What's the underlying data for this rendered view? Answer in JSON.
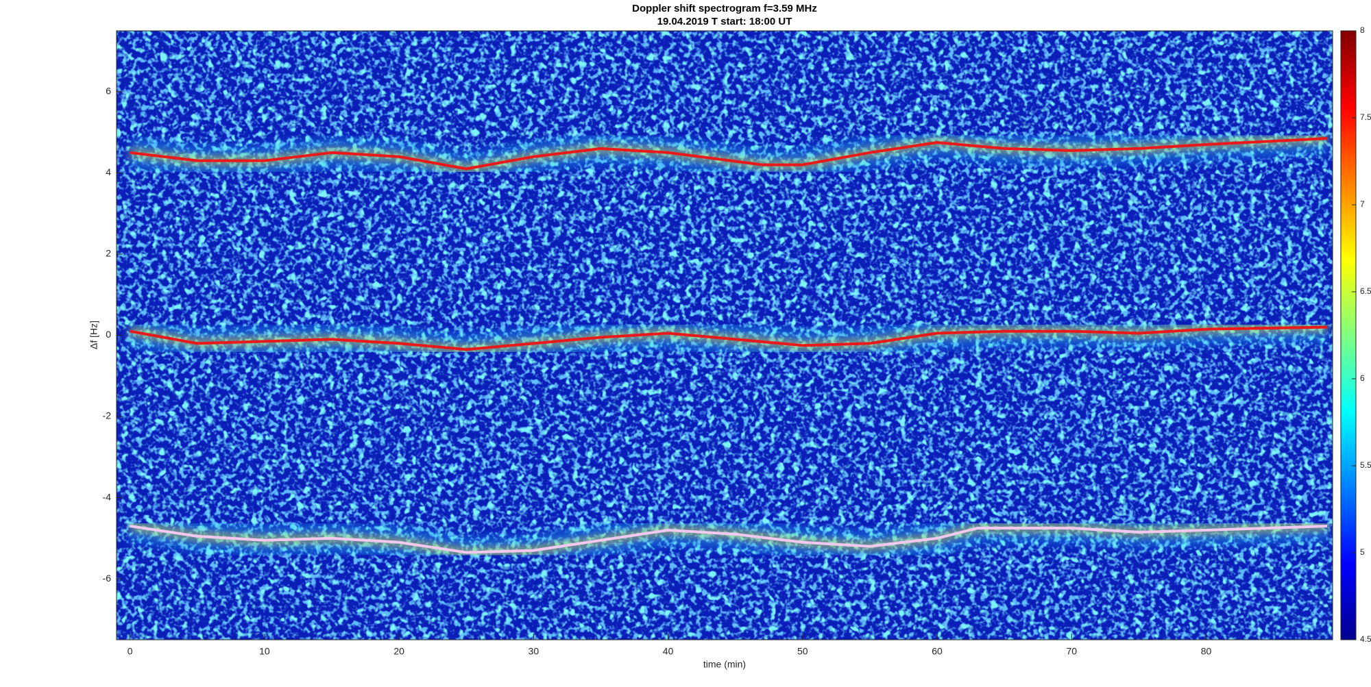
{
  "chart_data": {
    "type": "spectrogram",
    "title": "Doppler shift spectrogram f=3.59 MHz",
    "subtitle": "19.04.2019   T start: 18:00 UT",
    "x_label": "time (min)",
    "y_label": "Δf [Hz]",
    "xlim": [
      -1,
      89.4
    ],
    "ylim": [
      -7.5,
      7.5
    ],
    "xticks": [
      0,
      10,
      20,
      30,
      40,
      50,
      60,
      70,
      80
    ],
    "yticks": [
      -6,
      -4,
      -2,
      0,
      2,
      4,
      6
    ],
    "clim": [
      4.5,
      8
    ],
    "cticks": [
      4.5,
      5,
      5.5,
      6,
      6.5,
      7,
      7.5,
      8
    ],
    "series": [
      {
        "color": "#e8191a",
        "x": [
          0,
          5,
          10,
          15,
          20,
          25,
          30,
          35,
          40,
          47,
          50,
          55,
          60,
          65,
          70,
          75,
          80,
          89
        ],
        "values": [
          4.5,
          4.3,
          4.3,
          4.5,
          4.4,
          4.1,
          4.4,
          4.6,
          4.5,
          4.2,
          4.2,
          4.5,
          4.75,
          4.6,
          4.55,
          4.6,
          4.7,
          4.85
        ]
      },
      {
        "color": "#e8191a",
        "x": [
          0,
          5,
          10,
          15,
          20,
          25,
          30,
          35,
          40,
          45,
          50,
          55,
          60,
          65,
          70,
          75,
          80,
          89
        ],
        "values": [
          0.1,
          -0.2,
          -0.15,
          -0.1,
          -0.2,
          -0.35,
          -0.2,
          -0.05,
          0.05,
          -0.1,
          -0.25,
          -0.2,
          0.05,
          0.1,
          0.1,
          0.05,
          0.15,
          0.2
        ]
      },
      {
        "color": "#f0c8f0",
        "x": [
          0,
          5,
          10,
          15,
          20,
          25,
          30,
          35,
          40,
          45,
          50,
          55,
          60,
          63,
          70,
          75,
          80,
          89
        ],
        "values": [
          -4.7,
          -4.95,
          -5.05,
          -5.0,
          -5.1,
          -5.35,
          -5.3,
          -5.05,
          -4.8,
          -4.9,
          -5.1,
          -5.2,
          -5.0,
          -4.75,
          -4.75,
          -4.85,
          -4.8,
          -4.7
        ]
      }
    ]
  }
}
